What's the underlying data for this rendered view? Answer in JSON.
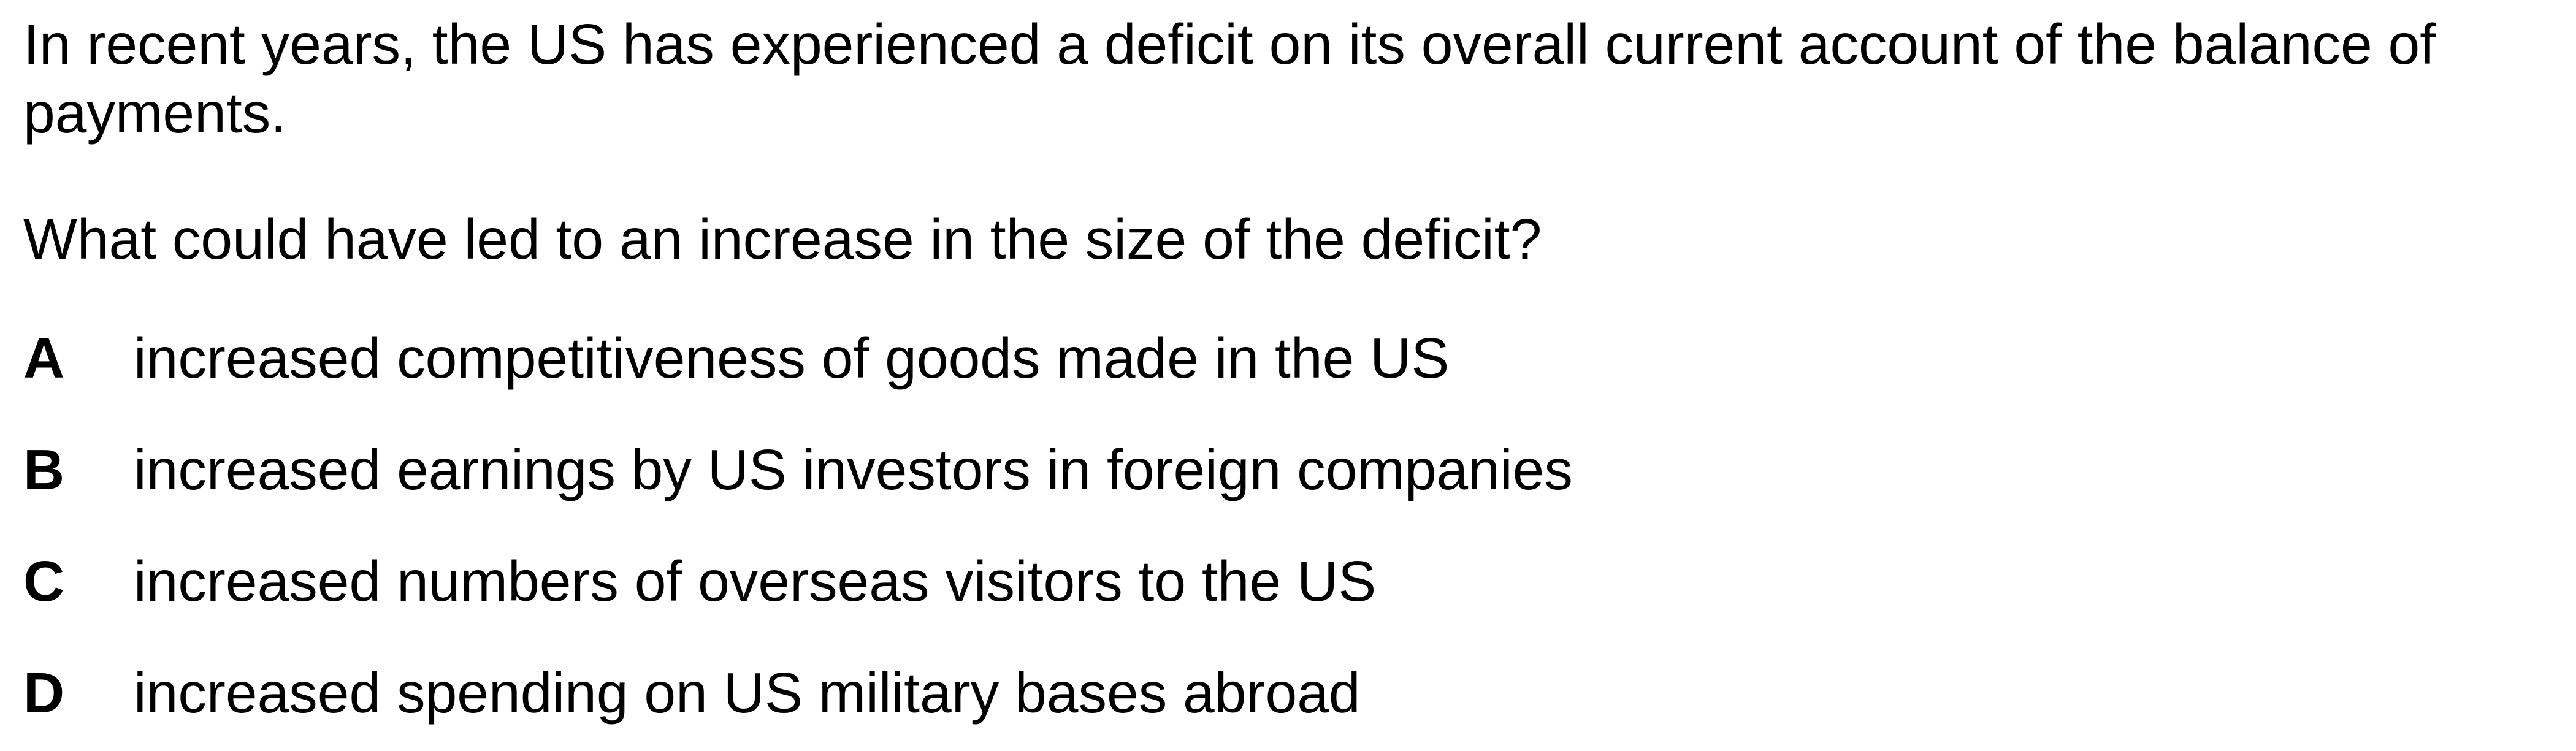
{
  "stem": "In recent years, the US has experienced a deficit on its overall current account of the balance of payments.",
  "question": "What could have led to an increase in the size of the deficit?",
  "options": [
    {
      "letter": "A",
      "text": "increased competitiveness of goods made in the US"
    },
    {
      "letter": "B",
      "text": "increased earnings by US investors in foreign companies"
    },
    {
      "letter": "C",
      "text": "increased numbers of overseas visitors to the US"
    },
    {
      "letter": "D",
      "text": "increased spending on US military bases abroad"
    }
  ]
}
